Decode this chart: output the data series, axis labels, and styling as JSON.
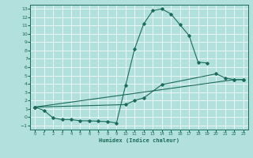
{
  "xlabel": "Humidex (Indice chaleur)",
  "bg_color": "#b2e0dc",
  "grid_color": "#ffffff",
  "line_color": "#1a6b5a",
  "xlim": [
    -0.5,
    23.5
  ],
  "ylim": [
    -1.5,
    13.5
  ],
  "xticks": [
    0,
    1,
    2,
    3,
    4,
    5,
    6,
    7,
    8,
    9,
    10,
    11,
    12,
    13,
    14,
    15,
    16,
    17,
    18,
    19,
    20,
    21,
    22,
    23
  ],
  "yticks": [
    -1,
    0,
    1,
    2,
    3,
    4,
    5,
    6,
    7,
    8,
    9,
    10,
    11,
    12,
    13
  ],
  "line1_x": [
    0,
    1,
    2,
    3,
    4,
    5,
    6,
    7,
    8,
    9,
    10,
    11,
    12,
    13,
    14,
    15,
    16,
    17,
    18,
    19
  ],
  "line1_y": [
    1.2,
    0.8,
    -0.1,
    -0.3,
    -0.3,
    -0.45,
    -0.45,
    -0.5,
    -0.55,
    -0.7,
    3.8,
    8.2,
    11.2,
    12.8,
    13.0,
    12.4,
    11.1,
    9.8,
    6.6,
    6.5
  ],
  "line2_x": [
    0,
    10,
    11,
    12,
    14,
    20,
    21,
    22,
    23
  ],
  "line2_y": [
    1.2,
    1.5,
    2.0,
    2.3,
    3.9,
    5.2,
    4.7,
    4.5,
    4.5
  ],
  "line3_x": [
    0,
    22,
    23
  ],
  "line3_y": [
    1.2,
    4.5,
    4.5
  ]
}
